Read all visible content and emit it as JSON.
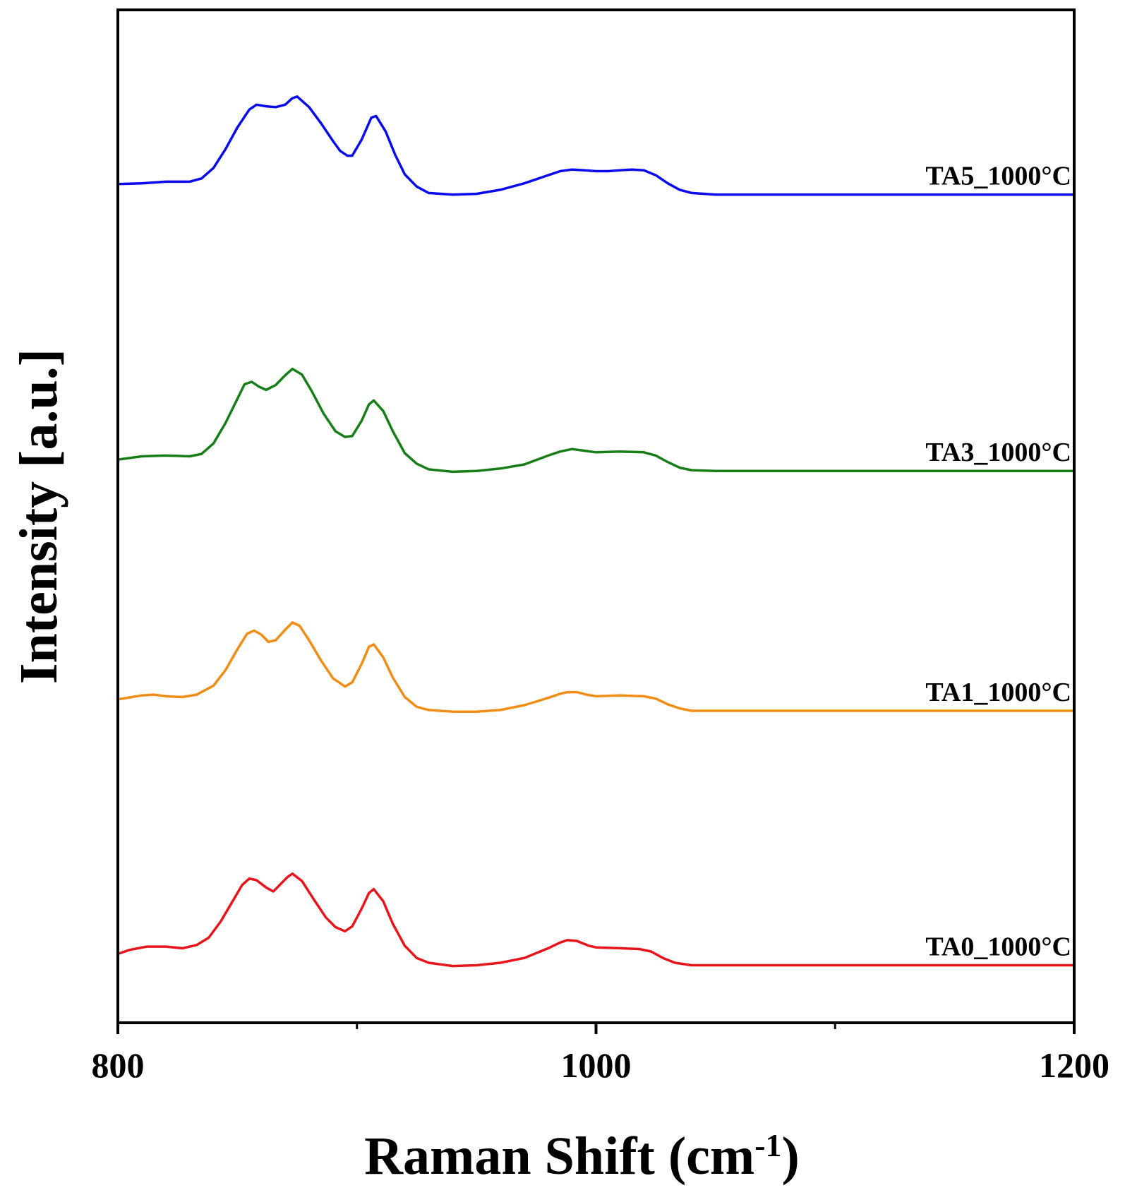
{
  "chart_data": {
    "type": "line",
    "xlabel": "Raman Shift (cm",
    "xlabel_sup": "-1",
    "xlabel_close": ")",
    "ylabel": "Intensity [a.u.]",
    "xlim": [
      800,
      1200
    ],
    "ylim": [
      0,
      1.25
    ],
    "x_ticks": [
      {
        "value": 800,
        "label": "800"
      },
      {
        "value": 1000,
        "label": "1000"
      },
      {
        "value": 1200,
        "label": "1200"
      }
    ],
    "x_minor_ticks": [
      900,
      1100
    ],
    "y_ticks_shown": false,
    "grid": false,
    "legend": "labels at right end of each curve",
    "series": [
      {
        "name": "TA5_1000°C",
        "color": "#0a0aee",
        "points": [
          [
            800,
            1.035
          ],
          [
            810,
            1.036
          ],
          [
            820,
            1.038
          ],
          [
            830,
            1.038
          ],
          [
            835,
            1.042
          ],
          [
            840,
            1.055
          ],
          [
            845,
            1.078
          ],
          [
            850,
            1.105
          ],
          [
            855,
            1.127
          ],
          [
            858,
            1.133
          ],
          [
            862,
            1.131
          ],
          [
            866,
            1.13
          ],
          [
            870,
            1.133
          ],
          [
            873,
            1.141
          ],
          [
            875,
            1.143
          ],
          [
            880,
            1.13
          ],
          [
            885,
            1.11
          ],
          [
            890,
            1.088
          ],
          [
            893,
            1.076
          ],
          [
            896,
            1.07
          ],
          [
            898,
            1.07
          ],
          [
            902,
            1.09
          ],
          [
            906,
            1.117
          ],
          [
            908,
            1.119
          ],
          [
            912,
            1.1
          ],
          [
            916,
            1.071
          ],
          [
            920,
            1.047
          ],
          [
            925,
            1.032
          ],
          [
            930,
            1.024
          ],
          [
            940,
            1.022
          ],
          [
            950,
            1.023
          ],
          [
            960,
            1.028
          ],
          [
            970,
            1.036
          ],
          [
            980,
            1.046
          ],
          [
            985,
            1.051
          ],
          [
            990,
            1.053
          ],
          [
            995,
            1.052
          ],
          [
            1000,
            1.051
          ],
          [
            1005,
            1.051
          ],
          [
            1010,
            1.052
          ],
          [
            1015,
            1.053
          ],
          [
            1020,
            1.052
          ],
          [
            1025,
            1.046
          ],
          [
            1030,
            1.036
          ],
          [
            1035,
            1.028
          ],
          [
            1040,
            1.024
          ],
          [
            1050,
            1.022
          ],
          [
            1100,
            1.022
          ],
          [
            1150,
            1.022
          ],
          [
            1200,
            1.022
          ]
        ]
      },
      {
        "name": "TA3_1000°C",
        "color": "#177d17",
        "points": [
          [
            800,
            0.695
          ],
          [
            810,
            0.699
          ],
          [
            820,
            0.7
          ],
          [
            830,
            0.699
          ],
          [
            835,
            0.702
          ],
          [
            840,
            0.715
          ],
          [
            845,
            0.74
          ],
          [
            850,
            0.77
          ],
          [
            853,
            0.788
          ],
          [
            856,
            0.791
          ],
          [
            859,
            0.785
          ],
          [
            862,
            0.781
          ],
          [
            866,
            0.787
          ],
          [
            870,
            0.799
          ],
          [
            873,
            0.807
          ],
          [
            877,
            0.8
          ],
          [
            881,
            0.78
          ],
          [
            886,
            0.752
          ],
          [
            891,
            0.73
          ],
          [
            895,
            0.723
          ],
          [
            898,
            0.724
          ],
          [
            902,
            0.743
          ],
          [
            905,
            0.763
          ],
          [
            907,
            0.768
          ],
          [
            911,
            0.755
          ],
          [
            915,
            0.73
          ],
          [
            920,
            0.703
          ],
          [
            925,
            0.69
          ],
          [
            930,
            0.683
          ],
          [
            940,
            0.68
          ],
          [
            950,
            0.681
          ],
          [
            960,
            0.684
          ],
          [
            970,
            0.689
          ],
          [
            980,
            0.7
          ],
          [
            985,
            0.705
          ],
          [
            990,
            0.708
          ],
          [
            995,
            0.706
          ],
          [
            1000,
            0.704
          ],
          [
            1010,
            0.705
          ],
          [
            1020,
            0.704
          ],
          [
            1025,
            0.7
          ],
          [
            1030,
            0.692
          ],
          [
            1035,
            0.685
          ],
          [
            1040,
            0.682
          ],
          [
            1050,
            0.681
          ],
          [
            1100,
            0.681
          ],
          [
            1150,
            0.681
          ],
          [
            1200,
            0.681
          ]
        ]
      },
      {
        "name": "TA1_1000°C",
        "color": "#f18d14",
        "points": [
          [
            800,
            0.399
          ],
          [
            810,
            0.404
          ],
          [
            815,
            0.405
          ],
          [
            820,
            0.403
          ],
          [
            827,
            0.402
          ],
          [
            833,
            0.405
          ],
          [
            840,
            0.416
          ],
          [
            845,
            0.435
          ],
          [
            850,
            0.461
          ],
          [
            854,
            0.48
          ],
          [
            857,
            0.484
          ],
          [
            860,
            0.479
          ],
          [
            863,
            0.47
          ],
          [
            866,
            0.472
          ],
          [
            870,
            0.485
          ],
          [
            873,
            0.494
          ],
          [
            876,
            0.49
          ],
          [
            880,
            0.472
          ],
          [
            885,
            0.447
          ],
          [
            890,
            0.425
          ],
          [
            895,
            0.415
          ],
          [
            898,
            0.42
          ],
          [
            902,
            0.443
          ],
          [
            905,
            0.464
          ],
          [
            907,
            0.467
          ],
          [
            911,
            0.451
          ],
          [
            915,
            0.426
          ],
          [
            920,
            0.402
          ],
          [
            925,
            0.39
          ],
          [
            930,
            0.386
          ],
          [
            940,
            0.384
          ],
          [
            950,
            0.384
          ],
          [
            960,
            0.386
          ],
          [
            970,
            0.392
          ],
          [
            980,
            0.401
          ],
          [
            985,
            0.406
          ],
          [
            988,
            0.408
          ],
          [
            992,
            0.408
          ],
          [
            996,
            0.405
          ],
          [
            1000,
            0.403
          ],
          [
            1010,
            0.404
          ],
          [
            1020,
            0.403
          ],
          [
            1025,
            0.4
          ],
          [
            1030,
            0.393
          ],
          [
            1035,
            0.388
          ],
          [
            1040,
            0.385
          ],
          [
            1050,
            0.385
          ],
          [
            1100,
            0.385
          ],
          [
            1150,
            0.385
          ],
          [
            1200,
            0.385
          ]
        ]
      },
      {
        "name": "TA0_1000°C",
        "color": "#e8141c",
        "points": [
          [
            800,
            0.085
          ],
          [
            805,
            0.09
          ],
          [
            812,
            0.094
          ],
          [
            820,
            0.094
          ],
          [
            827,
            0.092
          ],
          [
            833,
            0.096
          ],
          [
            838,
            0.105
          ],
          [
            843,
            0.125
          ],
          [
            848,
            0.15
          ],
          [
            852,
            0.17
          ],
          [
            855,
            0.178
          ],
          [
            858,
            0.176
          ],
          [
            862,
            0.167
          ],
          [
            865,
            0.162
          ],
          [
            868,
            0.171
          ],
          [
            871,
            0.18
          ],
          [
            873,
            0.184
          ],
          [
            877,
            0.175
          ],
          [
            882,
            0.152
          ],
          [
            887,
            0.13
          ],
          [
            891,
            0.118
          ],
          [
            895,
            0.113
          ],
          [
            898,
            0.119
          ],
          [
            902,
            0.141
          ],
          [
            905,
            0.16
          ],
          [
            907,
            0.165
          ],
          [
            911,
            0.15
          ],
          [
            915,
            0.122
          ],
          [
            920,
            0.095
          ],
          [
            925,
            0.08
          ],
          [
            930,
            0.074
          ],
          [
            940,
            0.07
          ],
          [
            950,
            0.071
          ],
          [
            960,
            0.074
          ],
          [
            970,
            0.08
          ],
          [
            980,
            0.092
          ],
          [
            985,
            0.099
          ],
          [
            988,
            0.102
          ],
          [
            992,
            0.101
          ],
          [
            997,
            0.095
          ],
          [
            1000,
            0.093
          ],
          [
            1010,
            0.092
          ],
          [
            1018,
            0.091
          ],
          [
            1023,
            0.088
          ],
          [
            1028,
            0.08
          ],
          [
            1033,
            0.074
          ],
          [
            1040,
            0.071
          ],
          [
            1050,
            0.071
          ],
          [
            1100,
            0.071
          ],
          [
            1150,
            0.071
          ],
          [
            1200,
            0.071
          ]
        ]
      }
    ]
  }
}
